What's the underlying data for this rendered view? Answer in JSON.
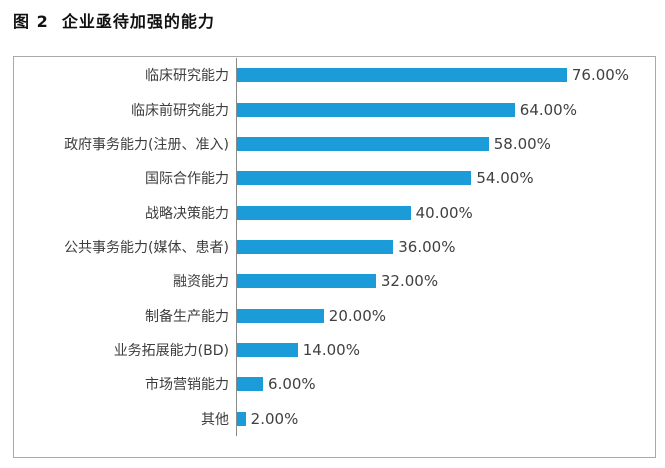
{
  "figure": {
    "title": "图 2  企业亟待加强的能力"
  },
  "colors": {
    "bar": "#1B9BD8",
    "axis": "#8A8A8A",
    "border": "#A9A9A9",
    "label_text": "#3D3D3D",
    "value_text": "#404040",
    "title_text": "#111111"
  },
  "chart_data": {
    "type": "bar",
    "orientation": "horizontal",
    "title": "图 2  企业亟待加强的能力",
    "categories": [
      "临床研究能力",
      "临床前研究能力",
      "政府事务能力(注册、准入)",
      "国际合作能力",
      "战略决策能力",
      "公共事务能力(媒体、患者)",
      "融资能力",
      "制备生产能力",
      "业务拓展能力(BD)",
      "市场营销能力",
      "其他"
    ],
    "values": [
      76,
      64,
      58,
      54,
      40,
      36,
      32,
      20,
      14,
      6,
      2
    ],
    "value_labels": [
      "76.00%",
      "64.00%",
      "58.00%",
      "54.00%",
      "40.00%",
      "36.00%",
      "32.00%",
      "20.00%",
      "14.00%",
      "6.00%",
      "2.00%"
    ],
    "xlabel": "",
    "ylabel": "",
    "xlim": [
      0,
      94
    ],
    "grid": false,
    "legend": false,
    "data_labels": "outside-end"
  }
}
